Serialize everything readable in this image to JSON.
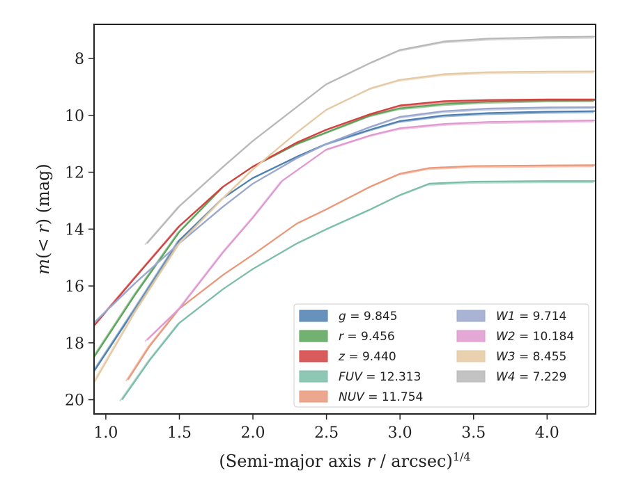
{
  "chart_data": {
    "type": "line",
    "xlabel": "(Semi-major axis r / arcsec)^1/4",
    "ylabel": "m(< r) (mag)",
    "xlim": [
      0.92,
      4.33
    ],
    "ylim": [
      20.5,
      6.8
    ],
    "y_inverted": true,
    "x_ticks": [
      1.0,
      1.5,
      2.0,
      2.5,
      3.0,
      3.5,
      4.0
    ],
    "x_tick_labels": [
      "1.0",
      "1.5",
      "2.0",
      "2.5",
      "3.0",
      "3.5",
      "4.0"
    ],
    "y_ticks": [
      8,
      10,
      12,
      14,
      16,
      18,
      20
    ],
    "y_tick_labels": [
      "8",
      "10",
      "12",
      "14",
      "16",
      "18",
      "20"
    ],
    "grid": false,
    "legend_position": "bottom-right",
    "series": [
      {
        "name": "g",
        "label": "g = 9.845",
        "color": "#4c7fb0",
        "x": [
          0.92,
          1.2,
          1.5,
          1.8,
          2.0,
          2.3,
          2.5,
          2.8,
          3.0,
          3.3,
          3.6,
          4.0,
          4.33
        ],
        "y": [
          19.0,
          16.8,
          14.4,
          12.9,
          12.2,
          11.45,
          11.0,
          10.5,
          10.2,
          10.0,
          9.92,
          9.87,
          9.85
        ]
      },
      {
        "name": "r",
        "label": "r = 9.456",
        "color": "#5aa35a",
        "x": [
          0.92,
          1.2,
          1.5,
          1.8,
          2.0,
          2.3,
          2.5,
          2.8,
          3.0,
          3.3,
          3.6,
          4.0,
          4.33
        ],
        "y": [
          18.5,
          16.3,
          14.1,
          12.5,
          11.8,
          11.0,
          10.6,
          10.0,
          9.75,
          9.6,
          9.52,
          9.47,
          9.46
        ]
      },
      {
        "name": "z",
        "label": "z = 9.440",
        "color": "#d24040",
        "x": [
          0.92,
          1.2,
          1.5,
          1.8,
          2.0,
          2.3,
          2.5,
          2.8,
          3.0,
          3.3,
          3.6,
          4.0,
          4.33
        ],
        "y": [
          17.4,
          15.7,
          13.9,
          12.5,
          11.8,
          10.95,
          10.5,
          9.95,
          9.65,
          9.5,
          9.46,
          9.44,
          9.44
        ]
      },
      {
        "name": "FUV",
        "label": "FUV = 12.313",
        "color": "#7bbda8",
        "x": [
          1.11,
          1.3,
          1.5,
          1.8,
          2.0,
          2.3,
          2.5,
          2.8,
          3.0,
          3.2,
          3.5,
          4.0,
          4.33
        ],
        "y": [
          20.0,
          18.6,
          17.3,
          16.1,
          15.4,
          14.5,
          14.0,
          13.3,
          12.8,
          12.4,
          12.33,
          12.31,
          12.31
        ]
      },
      {
        "name": "NUV",
        "label": "NUV = 11.754",
        "color": "#e9987a",
        "x": [
          1.15,
          1.3,
          1.5,
          1.8,
          2.0,
          2.3,
          2.5,
          2.8,
          3.0,
          3.2,
          3.5,
          4.0,
          4.33
        ],
        "y": [
          19.3,
          18.1,
          16.8,
          15.6,
          14.9,
          13.8,
          13.3,
          12.5,
          12.05,
          11.85,
          11.78,
          11.76,
          11.75
        ]
      },
      {
        "name": "W1",
        "label": "W1 = 9.714",
        "color": "#9aa7cc",
        "x": [
          0.92,
          1.2,
          1.5,
          1.8,
          2.0,
          2.3,
          2.5,
          2.8,
          3.0,
          3.3,
          3.6,
          4.0,
          4.33
        ],
        "y": [
          17.3,
          15.9,
          14.5,
          13.2,
          12.4,
          11.5,
          11.0,
          10.4,
          10.05,
          9.85,
          9.76,
          9.72,
          9.71
        ]
      },
      {
        "name": "W2",
        "label": "W2 = 10.184",
        "color": "#df99cf",
        "x": [
          1.28,
          1.5,
          1.8,
          2.0,
          2.2,
          2.5,
          2.8,
          3.0,
          3.3,
          3.6,
          4.0,
          4.33
        ],
        "y": [
          17.9,
          16.8,
          14.8,
          13.6,
          12.3,
          11.2,
          10.7,
          10.45,
          10.3,
          10.23,
          10.2,
          10.18
        ]
      },
      {
        "name": "W3",
        "label": "W3 = 8.455",
        "color": "#e5c9a2",
        "x": [
          0.92,
          1.2,
          1.5,
          1.8,
          2.0,
          2.3,
          2.5,
          2.8,
          3.0,
          3.3,
          3.6,
          4.0,
          4.33
        ],
        "y": [
          19.4,
          16.9,
          14.5,
          12.9,
          11.9,
          10.6,
          9.8,
          9.05,
          8.75,
          8.55,
          8.48,
          8.46,
          8.455
        ]
      },
      {
        "name": "W4",
        "label": "W4 = 7.229",
        "color": "#b8b8b8",
        "x": [
          1.28,
          1.5,
          1.8,
          2.0,
          2.3,
          2.5,
          2.8,
          3.0,
          3.3,
          3.6,
          4.0,
          4.33
        ],
        "y": [
          14.5,
          13.2,
          11.8,
          10.9,
          9.7,
          8.9,
          8.15,
          7.7,
          7.4,
          7.3,
          7.25,
          7.23
        ]
      }
    ]
  }
}
